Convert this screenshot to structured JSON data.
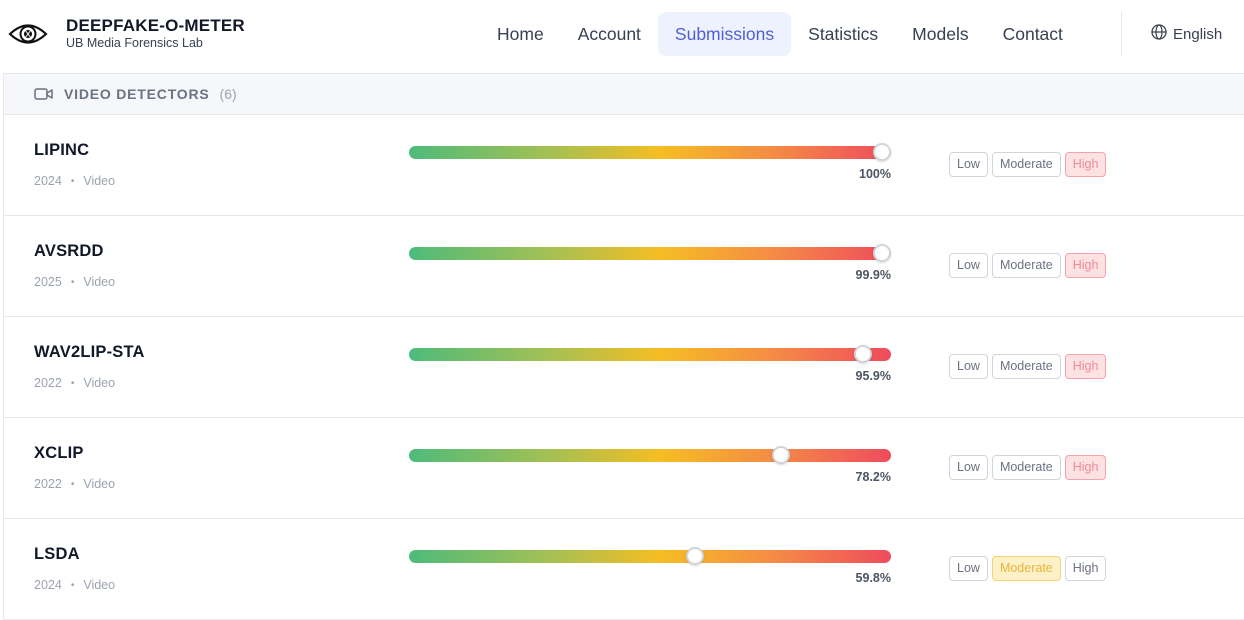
{
  "brand": {
    "title": "DEEPFAKE-O-METER",
    "subtitle": "UB Media Forensics Lab",
    "logo_icon": "eye-icon"
  },
  "nav": {
    "items": [
      {
        "label": "Home",
        "active": false
      },
      {
        "label": "Account",
        "active": false
      },
      {
        "label": "Submissions",
        "active": true
      },
      {
        "label": "Statistics",
        "active": false
      },
      {
        "label": "Models",
        "active": false
      },
      {
        "label": "Contact",
        "active": false
      }
    ],
    "language": "English",
    "language_icon": "globe-icon"
  },
  "section": {
    "title": "VIDEO DETECTORS",
    "count": "(6)",
    "icon": "video-camera-icon"
  },
  "level_labels": {
    "low": "Low",
    "moderate": "Moderate",
    "high": "High"
  },
  "detectors": [
    {
      "name": "LIPINC",
      "year": "2024",
      "type": "Video",
      "percent": "100%",
      "score": 1.0,
      "level": "high"
    },
    {
      "name": "AVSRDD",
      "year": "2025",
      "type": "Video",
      "percent": "99.9%",
      "score": 0.999,
      "level": "high"
    },
    {
      "name": "WAV2LIP-STA",
      "year": "2022",
      "type": "Video",
      "percent": "95.9%",
      "score": 0.959,
      "level": "high"
    },
    {
      "name": "XCLIP",
      "year": "2022",
      "type": "Video",
      "percent": "78.2%",
      "score": 0.782,
      "level": "high"
    },
    {
      "name": "LSDA",
      "year": "2024",
      "type": "Video",
      "percent": "59.8%",
      "score": 0.598,
      "level": "moderate"
    }
  ],
  "colors": {
    "accent": "#4f5fd1",
    "high": "#f08a96",
    "moderate": "#e9b43c"
  }
}
